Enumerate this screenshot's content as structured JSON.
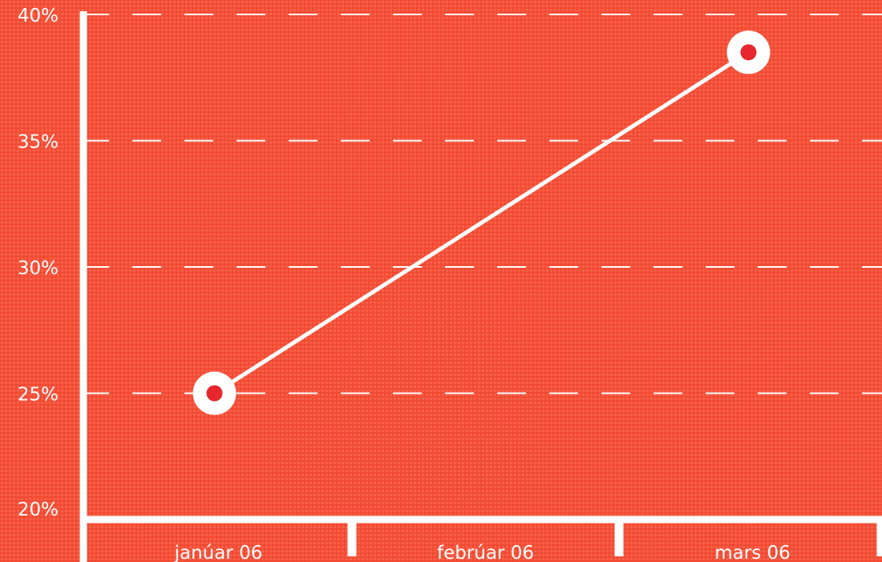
{
  "chart_data": {
    "type": "line",
    "categories": [
      "janúar 06",
      "febrúar 06",
      "mars 06"
    ],
    "series": [
      {
        "values": [
          25.0,
          null,
          38.5
        ]
      }
    ],
    "yticks": [
      "20%",
      "25%",
      "30%",
      "35%",
      "40%"
    ],
    "ylim": [
      20,
      40
    ],
    "grid": "dashed-horizontal",
    "colors": {
      "background": "#f24a33",
      "foreground": "#ffffff",
      "marker_center": "#e8262e"
    }
  }
}
